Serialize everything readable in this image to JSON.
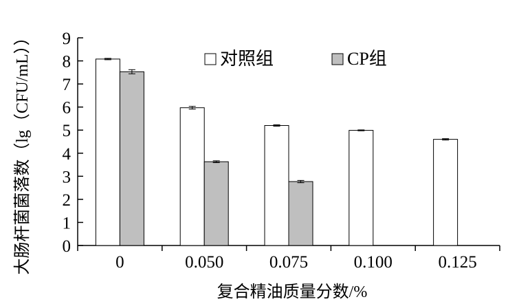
{
  "chart_data": {
    "type": "bar",
    "categories": [
      "0",
      "0.050",
      "0.075",
      "0.100",
      "0.125"
    ],
    "series": [
      {
        "name": "对照组",
        "values": [
          8.08,
          5.97,
          5.2,
          4.99,
          4.6
        ],
        "errors": [
          0.03,
          0.06,
          0.03,
          0.02,
          0.03
        ],
        "color": "#ffffff"
      },
      {
        "name": "CP组",
        "values": [
          7.53,
          3.63,
          2.77,
          null,
          null
        ],
        "errors": [
          0.09,
          0.04,
          0.05,
          null,
          null
        ],
        "color": "#bfbfbf"
      }
    ],
    "xlabel": "复合精油质量分数/%",
    "ylabel": "大肠杆菌菌落数（lg（CFU/mL））",
    "ylim": [
      0,
      9
    ],
    "yticks": [
      "0",
      "1",
      "2",
      "3",
      "4",
      "5",
      "6",
      "7",
      "8",
      "9"
    ],
    "grid": false,
    "legend_position": "top-center"
  }
}
